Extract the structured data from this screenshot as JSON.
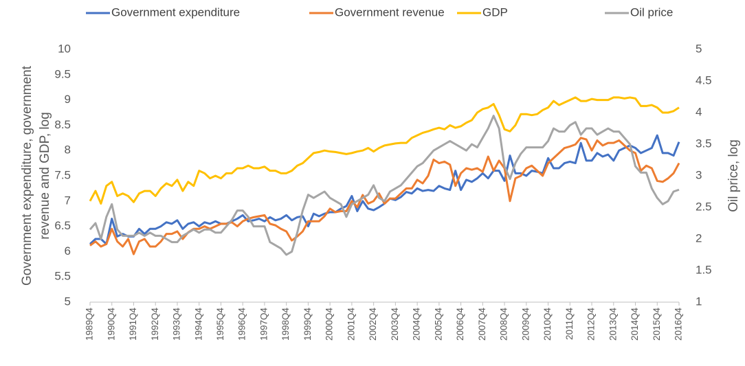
{
  "chart_data": {
    "type": "line",
    "y_label": [
      "Government expenditure, government",
      "revenue and GDP, log"
    ],
    "y2_label": "Oil price, log",
    "categories": [
      "1989Q4",
      null,
      null,
      null,
      "1990Q4",
      null,
      null,
      null,
      "1991Q4",
      null,
      null,
      null,
      "1992Q4",
      null,
      null,
      null,
      "1993Q4",
      null,
      null,
      null,
      "1994Q4",
      null,
      null,
      null,
      "1995Q4",
      null,
      null,
      null,
      "1996Q4",
      null,
      null,
      null,
      "1997Q4",
      null,
      null,
      null,
      "1998Q4",
      null,
      null,
      null,
      "1999Q4",
      null,
      null,
      null,
      "2000Q4",
      null,
      null,
      null,
      "2001Q4",
      null,
      null,
      null,
      "2002Q4",
      null,
      null,
      null,
      "2003Q4",
      null,
      null,
      null,
      "2004Q4",
      null,
      null,
      null,
      "2005Q4",
      null,
      null,
      null,
      "2006Q4",
      null,
      null,
      null,
      "2007Q4",
      null,
      null,
      null,
      "2008Q4",
      null,
      null,
      null,
      "2009Q4",
      null,
      null,
      null,
      "2010Q4",
      null,
      null,
      null,
      "2011Q4",
      null,
      null,
      null,
      "2012Q4",
      null,
      null,
      null,
      "2013Q4",
      null,
      null,
      null,
      "2014Q4",
      null,
      null,
      null,
      "2015Q4",
      null,
      null,
      null,
      "2016Q4"
    ],
    "series": [
      {
        "name": "Government expenditure",
        "color": "#4472c4",
        "values": [
          6.15,
          6.25,
          6.25,
          6.15,
          6.65,
          6.3,
          6.35,
          6.3,
          6.3,
          6.45,
          6.35,
          6.45,
          6.45,
          6.5,
          6.58,
          6.55,
          6.62,
          6.45,
          6.55,
          6.58,
          6.5,
          6.58,
          6.55,
          6.6,
          6.55,
          6.55,
          6.6,
          6.65,
          6.72,
          6.6,
          6.62,
          6.65,
          6.6,
          6.68,
          6.62,
          6.65,
          6.72,
          6.62,
          6.68,
          6.7,
          6.5,
          6.75,
          6.7,
          6.75,
          6.78,
          6.78,
          6.85,
          6.9,
          7.1,
          6.8,
          7.0,
          6.85,
          6.82,
          6.88,
          6.95,
          7.05,
          7.02,
          7.08,
          7.18,
          7.15,
          7.25,
          7.2,
          7.22,
          7.2,
          7.3,
          7.25,
          7.22,
          7.6,
          7.22,
          7.42,
          7.38,
          7.45,
          7.55,
          7.45,
          7.6,
          7.6,
          7.4,
          7.9,
          7.55,
          7.55,
          7.5,
          7.6,
          7.58,
          7.55,
          7.85,
          7.65,
          7.65,
          7.75,
          7.78,
          7.75,
          8.15,
          7.8,
          7.8,
          7.95,
          7.88,
          7.92,
          7.8,
          8.0,
          8.05,
          8.1,
          8.05,
          7.95,
          8.0,
          8.05,
          8.3,
          7.95,
          7.95,
          7.9,
          8.17
        ]
      },
      {
        "name": "Government revenue",
        "color": "#ed7d31",
        "values": [
          6.12,
          6.2,
          6.1,
          6.15,
          6.45,
          6.2,
          6.1,
          6.25,
          5.95,
          6.2,
          6.25,
          6.1,
          6.1,
          6.2,
          6.35,
          6.35,
          6.4,
          6.25,
          6.38,
          6.45,
          6.45,
          6.5,
          6.45,
          6.5,
          6.55,
          6.55,
          6.58,
          6.5,
          6.6,
          6.65,
          6.68,
          6.7,
          6.72,
          6.55,
          6.52,
          6.45,
          6.4,
          6.22,
          6.3,
          6.4,
          6.6,
          6.6,
          6.6,
          6.7,
          6.85,
          6.78,
          6.8,
          6.8,
          7.0,
          6.88,
          7.12,
          6.95,
          7.0,
          7.15,
          6.95,
          7.05,
          7.05,
          7.15,
          7.25,
          7.25,
          7.42,
          7.35,
          7.5,
          7.82,
          7.75,
          7.78,
          7.72,
          7.3,
          7.55,
          7.65,
          7.62,
          7.65,
          7.58,
          7.88,
          7.6,
          7.8,
          7.65,
          7.0,
          7.45,
          7.5,
          7.65,
          7.7,
          7.6,
          7.5,
          7.75,
          7.85,
          7.95,
          8.05,
          8.08,
          8.12,
          8.25,
          8.22,
          8.0,
          8.2,
          8.1,
          8.15,
          8.15,
          8.2,
          8.1,
          8.0,
          7.95,
          7.6,
          7.7,
          7.65,
          7.4,
          7.38,
          7.45,
          7.55,
          7.75
        ]
      },
      {
        "name": "GDP",
        "color": "#ffc000",
        "values": [
          7.0,
          7.2,
          6.95,
          7.3,
          7.38,
          7.1,
          7.15,
          7.1,
          6.98,
          7.15,
          7.2,
          7.2,
          7.1,
          7.25,
          7.35,
          7.3,
          7.42,
          7.2,
          7.38,
          7.3,
          7.6,
          7.55,
          7.45,
          7.5,
          7.45,
          7.55,
          7.55,
          7.65,
          7.65,
          7.7,
          7.65,
          7.65,
          7.68,
          7.6,
          7.6,
          7.55,
          7.55,
          7.6,
          7.7,
          7.75,
          7.85,
          7.95,
          7.97,
          8.0,
          7.98,
          7.97,
          7.95,
          7.93,
          7.95,
          7.98,
          8.0,
          8.05,
          7.98,
          8.05,
          8.1,
          8.12,
          8.14,
          8.15,
          8.15,
          8.25,
          8.3,
          8.35,
          8.38,
          8.42,
          8.45,
          8.42,
          8.5,
          8.45,
          8.48,
          8.55,
          8.6,
          8.75,
          8.82,
          8.85,
          8.92,
          8.7,
          8.42,
          8.38,
          8.5,
          8.72,
          8.72,
          8.7,
          8.72,
          8.8,
          8.85,
          8.98,
          8.9,
          8.95,
          9.0,
          9.05,
          8.98,
          8.98,
          9.02,
          9.0,
          9.0,
          9.0,
          9.05,
          9.05,
          9.03,
          9.05,
          9.03,
          8.88,
          8.88,
          8.9,
          8.85,
          8.75,
          8.75,
          8.78,
          8.85
        ]
      },
      {
        "name": "Oil price",
        "color": "#a5a5a5",
        "axis": "y2",
        "values": [
          2.15,
          2.25,
          2.0,
          2.35,
          2.55,
          2.15,
          2.05,
          2.05,
          2.05,
          2.1,
          2.05,
          2.1,
          2.05,
          2.05,
          2.0,
          1.95,
          1.95,
          2.05,
          2.1,
          2.15,
          2.1,
          2.15,
          2.15,
          2.1,
          2.1,
          2.2,
          2.3,
          2.45,
          2.45,
          2.35,
          2.2,
          2.2,
          2.2,
          1.95,
          1.9,
          1.85,
          1.75,
          1.8,
          2.1,
          2.45,
          2.7,
          2.65,
          2.7,
          2.75,
          2.65,
          2.6,
          2.55,
          2.35,
          2.55,
          2.6,
          2.65,
          2.7,
          2.85,
          2.65,
          2.6,
          2.75,
          2.8,
          2.85,
          2.95,
          3.05,
          3.15,
          3.2,
          3.3,
          3.4,
          3.45,
          3.5,
          3.55,
          3.5,
          3.45,
          3.4,
          3.5,
          3.45,
          3.6,
          3.75,
          3.95,
          3.75,
          3.15,
          2.95,
          3.2,
          3.35,
          3.45,
          3.45,
          3.45,
          3.45,
          3.55,
          3.75,
          3.7,
          3.7,
          3.8,
          3.85,
          3.65,
          3.75,
          3.75,
          3.65,
          3.7,
          3.75,
          3.7,
          3.7,
          3.6,
          3.5,
          3.15,
          3.05,
          3.05,
          2.8,
          2.65,
          2.55,
          2.6,
          2.75,
          2.78
        ]
      }
    ],
    "ylim": [
      5,
      10
    ],
    "yticks": [
      5,
      5.5,
      6,
      6.5,
      7,
      7.5,
      8,
      8.5,
      9,
      9.5,
      10
    ],
    "y2lim": [
      1,
      5
    ],
    "y2ticks": [
      1,
      1.5,
      2,
      2.5,
      3,
      3.5,
      4,
      4.5,
      5
    ],
    "grid": false,
    "legend": "top"
  }
}
